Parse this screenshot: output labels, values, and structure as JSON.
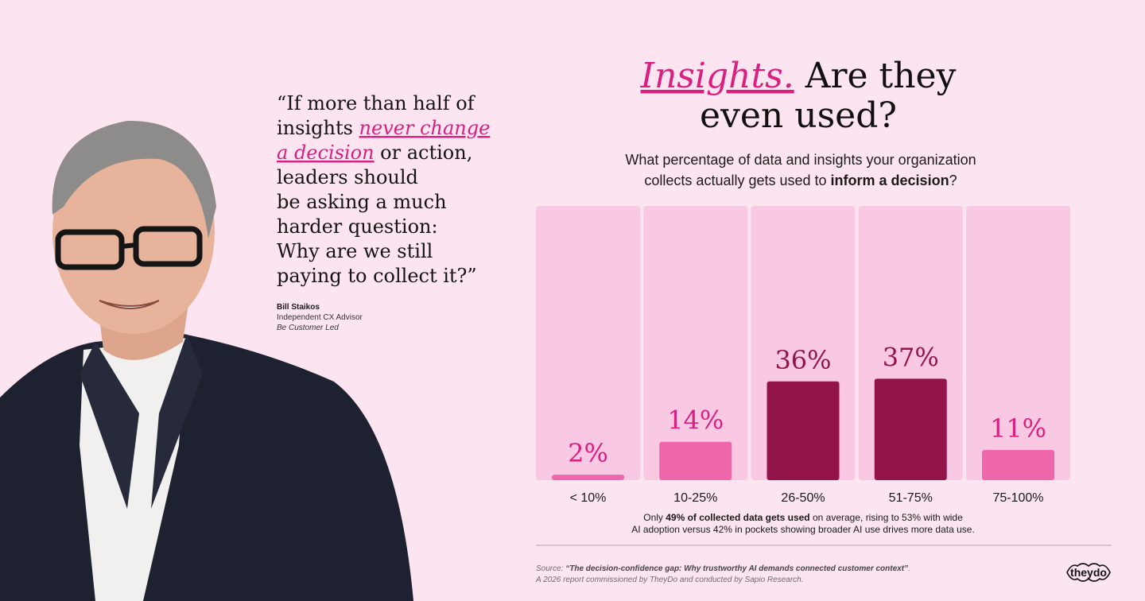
{
  "quote": {
    "lines": [
      [
        {
          "text": "“If more than half of"
        }
      ],
      [
        {
          "text": "insights "
        },
        {
          "text": "never change",
          "em": true
        }
      ],
      [
        {
          "text": "a decision",
          "em": true
        },
        {
          "text": " or action,"
        }
      ],
      [
        {
          "text": "leaders should"
        }
      ],
      [
        {
          "text": "be asking a much"
        }
      ],
      [
        {
          "text": "harder question:"
        }
      ],
      [
        {
          "text": "Why are we still"
        }
      ],
      [
        {
          "text": "paying to collect it?”"
        }
      ]
    ],
    "name": "Bill Staikos",
    "role": "Independent CX Advisor",
    "company": "Be Customer Led"
  },
  "chart_data": {
    "type": "bar",
    "title_lines": [
      [
        {
          "text": "Insights.",
          "em": true
        },
        {
          "text": " Are they"
        }
      ],
      [
        {
          "text": "even used?"
        }
      ]
    ],
    "subtitle_lines": [
      [
        {
          "text": "What percentage of data and insights your organization"
        }
      ],
      [
        {
          "text": "collects actually gets used to "
        },
        {
          "text": "inform a decision",
          "bold": true
        },
        {
          "text": "?"
        }
      ]
    ],
    "categories": [
      "< 10%",
      "10-25%",
      "26-50%",
      "51-75%",
      "75-100%"
    ],
    "values": [
      2,
      14,
      36,
      37,
      11
    ],
    "value_labels": [
      "2%",
      "14%",
      "36%",
      "37%",
      "11%"
    ],
    "colors": [
      "#ef67ab",
      "#ef67ab",
      "#921448",
      "#921448",
      "#ef67ab"
    ],
    "ylim": [
      0,
      100
    ],
    "note_lines": [
      [
        {
          "text": "Only "
        },
        {
          "text": "49% of collected data gets used",
          "bold": true
        },
        {
          "text": " on average, rising to 53% with wide"
        }
      ],
      [
        {
          "text": "AI adoption versus 42% in pockets showing broader AI use drives more data use."
        }
      ]
    ]
  },
  "footer": {
    "source_lines": [
      [
        {
          "text": "Source: "
        },
        {
          "text": "“The decision-confidence gap: Why trustworthy AI demands connected customer context”",
          "bold": true
        },
        {
          "text": "."
        }
      ],
      [
        {
          "text": "A 2026 report commissioned by TheyDo and conducted by Sapio Research."
        }
      ]
    ],
    "logo": "theydo"
  }
}
